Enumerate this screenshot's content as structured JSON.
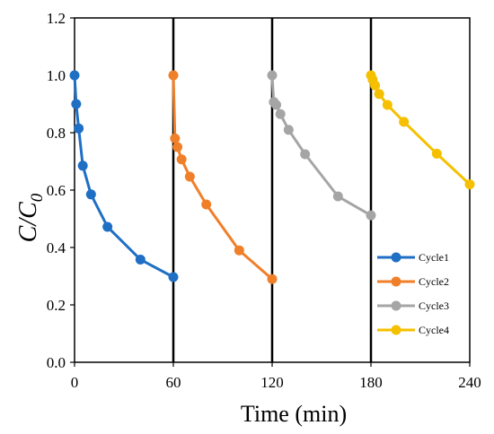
{
  "chart_data": {
    "type": "line",
    "title": "",
    "xlabel": "Time (min)",
    "ylabel_main": "C/C",
    "ylabel_sub": "0",
    "xlim": [
      0,
      240
    ],
    "ylim": [
      0.0,
      1.2
    ],
    "xticks": [
      "0",
      "60",
      "120",
      "180",
      "240"
    ],
    "yticks": [
      "0.0",
      "0.2",
      "0.4",
      "0.6",
      "0.8",
      "1.0",
      "1.2"
    ],
    "cycle_dividers": [
      60,
      120,
      180
    ],
    "grid": false,
    "legend_position": "bottom-right",
    "series": [
      {
        "name": "Cycle1",
        "color": "#1f6fc5",
        "x": [
          0,
          1,
          2.5,
          5,
          10,
          20,
          40,
          60
        ],
        "y": [
          1.0,
          0.9,
          0.815,
          0.685,
          0.585,
          0.472,
          0.358,
          0.297
        ]
      },
      {
        "name": "Cycle2",
        "color": "#f07f2a",
        "x": [
          60,
          61,
          62.5,
          65,
          70,
          80,
          100,
          120
        ],
        "y": [
          1.0,
          0.78,
          0.75,
          0.707,
          0.647,
          0.55,
          0.39,
          0.29
        ]
      },
      {
        "name": "Cycle3",
        "color": "#a5a5a5",
        "x": [
          120,
          121,
          122.5,
          125,
          130,
          140,
          160,
          180
        ],
        "y": [
          1.0,
          0.907,
          0.897,
          0.865,
          0.81,
          0.725,
          0.578,
          0.512
        ]
      },
      {
        "name": "Cycle4",
        "color": "#f5c000",
        "x": [
          180,
          181,
          182.5,
          185,
          190,
          200,
          220,
          240
        ],
        "y": [
          1.0,
          0.985,
          0.965,
          0.935,
          0.897,
          0.838,
          0.727,
          0.62
        ]
      }
    ]
  }
}
